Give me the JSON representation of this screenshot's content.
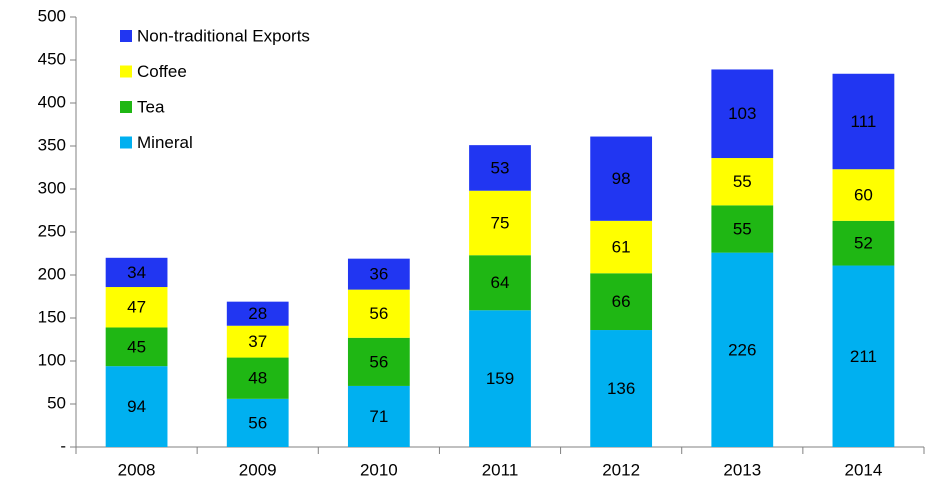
{
  "chart_data": {
    "type": "stacked_bar",
    "categories": [
      "2008",
      "2009",
      "2010",
      "2011",
      "2012",
      "2013",
      "2014"
    ],
    "series": [
      {
        "name": "Mineral",
        "color": "#00b0f0",
        "values": [
          94,
          56,
          71,
          159,
          136,
          226,
          211
        ]
      },
      {
        "name": "Tea",
        "color": "#1fb714",
        "values": [
          45,
          48,
          56,
          64,
          66,
          55,
          52
        ]
      },
      {
        "name": "Coffee",
        "color": "#ffff00",
        "values": [
          47,
          37,
          56,
          75,
          61,
          55,
          60
        ]
      },
      {
        "name": "Non-traditional Exports",
        "color": "#2136f2",
        "values": [
          34,
          28,
          36,
          53,
          98,
          103,
          111
        ]
      }
    ],
    "ylim": [
      0,
      500
    ],
    "yticks": [
      {
        "value": 0,
        "label": "-"
      },
      50,
      100,
      150,
      200,
      250,
      300,
      350,
      400,
      450,
      500
    ],
    "grid": false,
    "legend": "upper left"
  }
}
